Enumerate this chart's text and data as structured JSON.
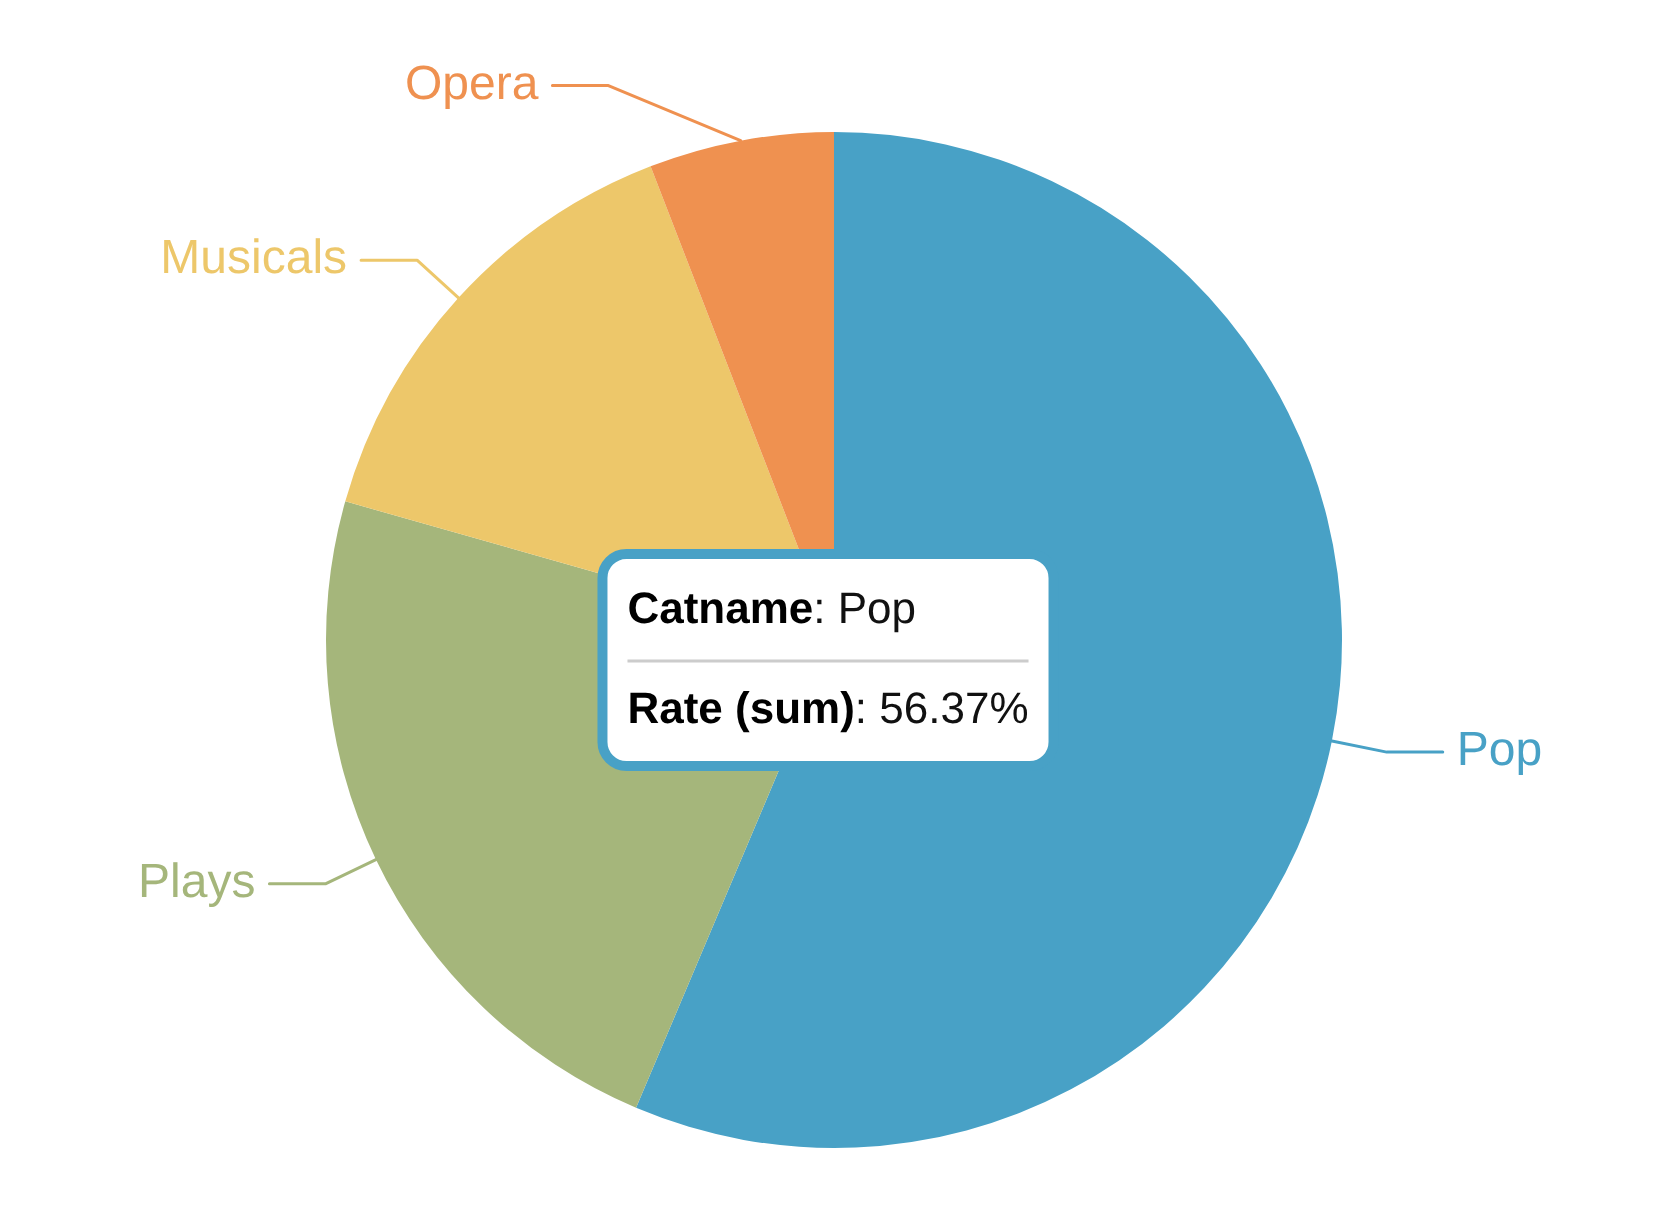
{
  "chart_data": {
    "type": "pie",
    "categories": [
      "Pop",
      "Plays",
      "Musicals",
      "Opera"
    ],
    "values": [
      56.37,
      23.03,
      14.72,
      5.88
    ],
    "colors": [
      "#48a1c6",
      "#a5b67b",
      "#edc76a",
      "#ef9150"
    ],
    "legend": false,
    "annotations": [
      {
        "text": "Catname: Pop",
        "x": "Pop"
      },
      {
        "text": "Rate (sum): 56.37%",
        "x": "Pop"
      }
    ]
  }
}
